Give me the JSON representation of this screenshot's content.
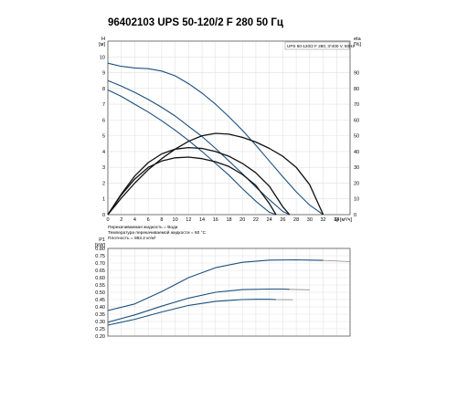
{
  "page": {
    "title": "96402103 UPS 50-120/2 F 280 50 Гц"
  },
  "chart_data": [
    {
      "type": "line",
      "title": "",
      "legend_text": "UPS 50-120/2 F 280, 3*400 V, 50Hz",
      "ylabel": "H",
      "ylabel_unit": "[м]",
      "y2label": "eta",
      "y2label_unit": "[%]",
      "xlabel": "Q [м³/ч]",
      "xlim": [
        0,
        36
      ],
      "ylim": [
        0,
        11
      ],
      "y2lim": [
        0,
        110
      ],
      "x_ticks": [
        "0",
        "2",
        "4",
        "6",
        "8",
        "10",
        "12",
        "14",
        "16",
        "18",
        "20",
        "22",
        "24",
        "26",
        "28",
        "30",
        "32",
        "34"
      ],
      "y_ticks": [
        "0",
        "1",
        "2",
        "3",
        "4",
        "5",
        "6",
        "7",
        "8",
        "9",
        "10"
      ],
      "y2_ticks": [
        "0",
        "10",
        "20",
        "30",
        "40",
        "50",
        "60",
        "70",
        "80",
        "90"
      ],
      "grid": true,
      "notes": [
        "Перекачиваемая жидкость = Вода",
        "Температура перекачиваемой жидкости = 60 °C",
        "Плотность = 983.2 кг/м³"
      ],
      "series": [
        {
          "kind": "head",
          "axis": "left",
          "color": "#1c4f7e",
          "x": [
            0,
            2,
            4,
            6,
            8,
            10,
            12,
            14,
            16,
            18,
            20,
            22,
            24,
            26,
            28,
            30,
            31,
            32
          ],
          "y": [
            9.6,
            9.4,
            9.3,
            9.25,
            9.1,
            8.8,
            8.3,
            7.7,
            7.0,
            6.2,
            5.35,
            4.4,
            3.4,
            2.4,
            1.45,
            0.6,
            0.3,
            0.0
          ]
        },
        {
          "kind": "head",
          "axis": "left",
          "color": "#1c4f7e",
          "x": [
            0,
            2,
            4,
            6,
            8,
            10,
            12,
            14,
            16,
            18,
            20,
            22,
            24,
            26,
            27
          ],
          "y": [
            8.5,
            8.15,
            7.75,
            7.3,
            6.8,
            6.25,
            5.6,
            4.95,
            4.2,
            3.4,
            2.6,
            1.75,
            0.95,
            0.2,
            0.0
          ]
        },
        {
          "kind": "head",
          "axis": "left",
          "color": "#1c4f7e",
          "x": [
            0,
            2,
            4,
            6,
            8,
            10,
            12,
            14,
            16,
            18,
            20,
            22,
            24,
            25
          ],
          "y": [
            7.9,
            7.5,
            7.0,
            6.5,
            5.95,
            5.35,
            4.7,
            4.0,
            3.25,
            2.5,
            1.65,
            0.85,
            0.15,
            0.0
          ]
        },
        {
          "kind": "efficiency",
          "axis": "right",
          "color": "#111111",
          "x": [
            0,
            2,
            4,
            6,
            8,
            10,
            12,
            14,
            16,
            18,
            20,
            22,
            24,
            26,
            28,
            30,
            32
          ],
          "y": [
            0,
            10.5,
            20,
            28.5,
            35.5,
            41.5,
            46.5,
            50,
            51.5,
            51,
            49,
            46,
            42,
            37,
            30,
            19,
            0
          ]
        },
        {
          "kind": "efficiency",
          "axis": "right",
          "color": "#111111",
          "x": [
            0,
            2,
            4,
            6,
            8,
            10,
            12,
            14,
            16,
            18,
            20,
            22,
            24,
            26,
            27
          ],
          "y": [
            0,
            13,
            24.5,
            33,
            38.5,
            41.5,
            42.5,
            42,
            40,
            37,
            32.5,
            26.5,
            18,
            5,
            0
          ]
        },
        {
          "kind": "efficiency",
          "axis": "right",
          "color": "#111111",
          "x": [
            0,
            2,
            4,
            6,
            8,
            10,
            12,
            14,
            16,
            18,
            20,
            22,
            24,
            25
          ],
          "y": [
            0,
            12.5,
            22.5,
            30,
            34,
            36,
            36.5,
            35.5,
            33.5,
            30.5,
            25.5,
            18.5,
            7,
            0
          ]
        }
      ]
    },
    {
      "type": "line",
      "title": "",
      "ylabel": "P1",
      "ylabel_unit": "[kW]",
      "xlim": [
        0,
        36
      ],
      "ylim": [
        0.2,
        0.8
      ],
      "y_ticks": [
        "0.20",
        "0.25",
        "0.30",
        "0.35",
        "0.40",
        "0.45",
        "0.50",
        "0.55",
        "0.60",
        "0.65",
        "0.70",
        "0.75",
        "0.80"
      ],
      "grid": true,
      "series": [
        {
          "color": "#1c4f7e",
          "x": [
            0,
            4,
            8,
            12,
            16,
            20,
            24,
            28,
            30,
            32
          ],
          "y": [
            0.375,
            0.42,
            0.505,
            0.6,
            0.668,
            0.705,
            0.72,
            0.722,
            0.72,
            0.718
          ],
          "tail_x": [
            32,
            36
          ],
          "tail_y": [
            0.718,
            0.71
          ]
        },
        {
          "color": "#1c4f7e",
          "x": [
            0,
            4,
            8,
            12,
            16,
            20,
            24,
            26,
            27
          ],
          "y": [
            0.295,
            0.345,
            0.405,
            0.46,
            0.5,
            0.518,
            0.522,
            0.522,
            0.52
          ],
          "tail_x": [
            27,
            30
          ],
          "tail_y": [
            0.52,
            0.517
          ]
        },
        {
          "color": "#1c4f7e",
          "x": [
            0,
            4,
            8,
            12,
            16,
            20,
            22,
            24,
            25
          ],
          "y": [
            0.275,
            0.315,
            0.365,
            0.41,
            0.438,
            0.45,
            0.452,
            0.452,
            0.45
          ],
          "tail_x": [
            25,
            27.5
          ],
          "tail_y": [
            0.45,
            0.449
          ]
        }
      ]
    }
  ]
}
